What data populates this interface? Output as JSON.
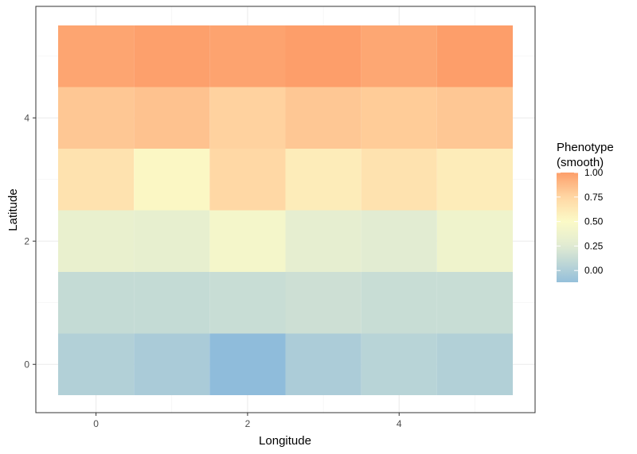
{
  "chart_data": {
    "type": "heatmap",
    "xlabel": "Longitude",
    "ylabel": "Latitude",
    "x": [
      0,
      1,
      2,
      3,
      4,
      5
    ],
    "y": [
      0,
      1,
      2,
      3,
      4,
      5
    ],
    "xlim": [
      -0.5,
      5.5
    ],
    "ylim": [
      -0.5,
      5.5
    ],
    "x_ticks": [
      0,
      2,
      4
    ],
    "y_ticks": [
      0,
      2,
      4
    ],
    "x_tick_labels": [
      "0",
      "2",
      "4"
    ],
    "y_tick_labels": [
      "0",
      "2",
      "4"
    ],
    "grid": true,
    "values": [
      [
        0.02,
        -0.02,
        -0.15,
        -0.01,
        0.05,
        0.02
      ],
      [
        0.11,
        0.11,
        0.13,
        0.15,
        0.13,
        0.13
      ],
      [
        0.33,
        0.31,
        0.43,
        0.3,
        0.26,
        0.38
      ],
      [
        0.67,
        0.52,
        0.74,
        0.6,
        0.67,
        0.6
      ],
      [
        0.82,
        0.84,
        0.77,
        0.82,
        0.8,
        0.82
      ],
      [
        0.97,
        0.99,
        0.98,
        1.02,
        0.96,
        1.0
      ]
    ],
    "legend": {
      "title_lines": [
        "Phenotype",
        "(smooth)"
      ],
      "labels": [
        "1.00",
        "0.75",
        "0.50",
        "0.25",
        "0.00"
      ],
      "breaks": [
        1.0,
        0.75,
        0.5,
        0.25,
        0.0
      ],
      "range": [
        -0.12,
        1.0
      ],
      "placement": "right"
    },
    "color_scale": {
      "stops": [
        {
          "value": -0.15,
          "color": "#8fbcdb"
        },
        {
          "value": 0.25,
          "color": "#e1ebd2"
        },
        {
          "value": 0.5,
          "color": "#fbfac7"
        },
        {
          "value": 0.75,
          "color": "#ffd7a4"
        },
        {
          "value": 1.0,
          "color": "#fd9e6a"
        }
      ]
    }
  }
}
